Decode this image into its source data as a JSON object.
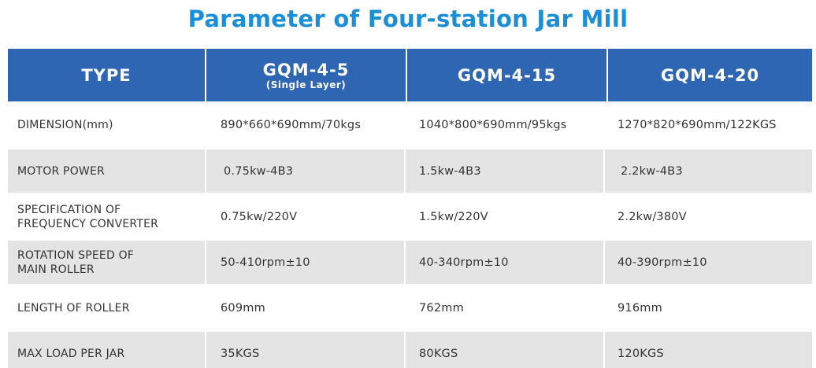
{
  "title": "Parameter of Four-station Jar Mill",
  "header": {
    "type_label": "TYPE",
    "models": [
      {
        "name": "GQM-4-5",
        "note": "(Single Layer)"
      },
      {
        "name": "GQM-4-15",
        "note": ""
      },
      {
        "name": "GQM-4-20",
        "note": ""
      }
    ]
  },
  "rows": [
    {
      "label": "DIMENSION(mm)",
      "values": [
        "890*660*690mm/70kgs",
        "1040*800*690mm/95kgs",
        "1270*820*690mm/122KGS"
      ]
    },
    {
      "label": "MOTOR POWER",
      "values": [
        "0.75kw-4B3",
        "1.5kw-4B3",
        "2.2kw-4B3"
      ]
    },
    {
      "label_lines": [
        "SPECIFICATION OF",
        "FREQUENCY CONVERTER"
      ],
      "values": [
        "0.75kw/220V",
        "1.5kw/220V",
        "2.2kw/380V"
      ]
    },
    {
      "label_lines": [
        "ROTATION SPEED OF",
        "MAIN ROLLER"
      ],
      "values": [
        "50-410rpm±10",
        "40-340rpm±10",
        "40-390rpm±10"
      ]
    },
    {
      "label": "LENGTH OF ROLLER",
      "values": [
        "609mm",
        "762mm",
        "916mm"
      ]
    },
    {
      "label": "MAX LOAD PER JAR",
      "values": [
        "35KGS",
        "80KGS",
        "120KGS"
      ]
    }
  ],
  "colors": {
    "title": "#1a8fd8",
    "header_bg": "#2f66b3",
    "header_text": "#ffffff",
    "row_shade": "#e4e4e4",
    "body_text": "#333333"
  }
}
